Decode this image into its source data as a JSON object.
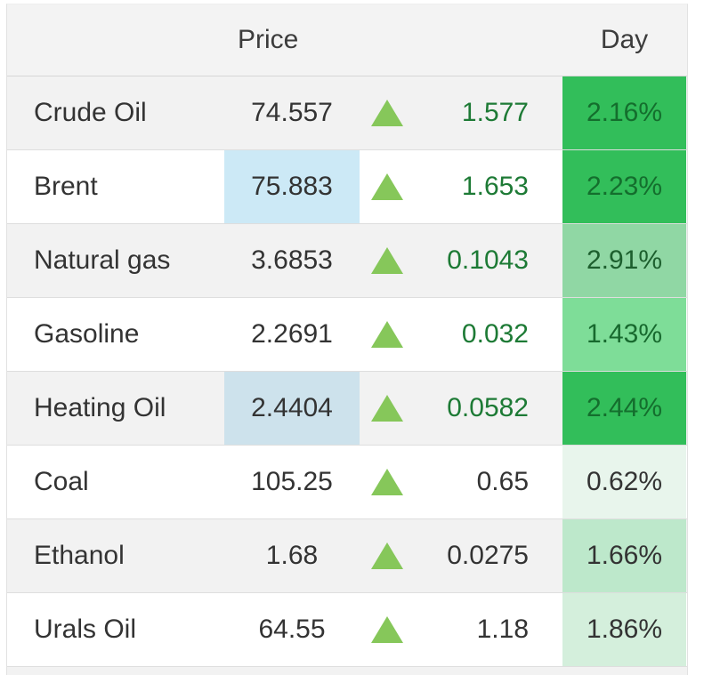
{
  "header": {
    "price": "Price",
    "day": "Day"
  },
  "palette": {
    "header_bg": "#f3f3f3",
    "row_bg_odd": "#f2f2f2",
    "row_bg_even": "#ffffff",
    "border": "#dedede",
    "text": "#333333",
    "arrow_green": "#86c75a",
    "change_green": "#1d7a35",
    "day_bright_green": "#32be5a",
    "price_highlight_blue": "#cce9f6"
  },
  "arrow_icon": "up-triangle",
  "rows": [
    {
      "name": "Crude Oil",
      "price": "74.557",
      "change": "1.577",
      "day": "2.16%",
      "day_bg": "#32be5a",
      "day_text": "#146e2d",
      "change_color": "#1d7a35",
      "price_highlight": null
    },
    {
      "name": "Brent",
      "price": "75.883",
      "change": "1.653",
      "day": "2.23%",
      "day_bg": "#32be5a",
      "day_text": "#146e2d",
      "change_color": "#1d7a35",
      "price_highlight": "#cce9f6"
    },
    {
      "name": "Natural gas",
      "price": "3.6853",
      "change": "0.1043",
      "day": "2.91%",
      "day_bg": "#90d7a4",
      "day_text": "#1d5f2e",
      "change_color": "#1d7a35",
      "price_highlight": null
    },
    {
      "name": "Gasoline",
      "price": "2.2691",
      "change": "0.032",
      "day": "1.43%",
      "day_bg": "#7edd98",
      "day_text": "#17692e",
      "change_color": "#1d7a35",
      "price_highlight": null
    },
    {
      "name": "Heating Oil",
      "price": "2.4404",
      "change": "0.0582",
      "day": "2.44%",
      "day_bg": "#32be5a",
      "day_text": "#146e2d",
      "change_color": "#1d7a35",
      "price_highlight": "#cde2ec"
    },
    {
      "name": "Coal",
      "price": "105.25",
      "change": "0.65",
      "day": "0.62%",
      "day_bg": "#e8f5ec",
      "day_text": "#333333",
      "change_color": "#333333",
      "price_highlight": null
    },
    {
      "name": "Ethanol",
      "price": "1.68",
      "change": "0.0275",
      "day": "1.66%",
      "day_bg": "#bde8cb",
      "day_text": "#333333",
      "change_color": "#333333",
      "price_highlight": null
    },
    {
      "name": "Urals Oil",
      "price": "64.55",
      "change": "1.18",
      "day": "1.86%",
      "day_bg": "#d4efdc",
      "day_text": "#333333",
      "change_color": "#333333",
      "price_highlight": null
    }
  ]
}
